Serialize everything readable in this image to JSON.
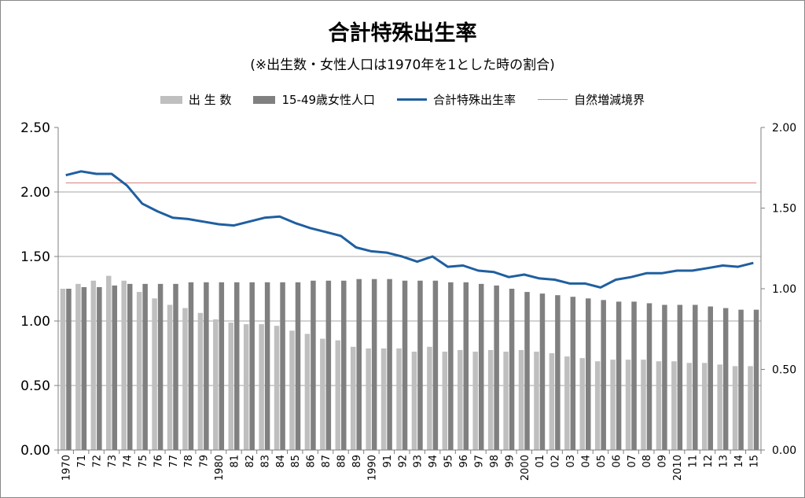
{
  "title": "合計特殊出生率",
  "subtitle": "(※出生数・女性人口は1970年を1とした時の割合)",
  "legend": [
    {
      "label": "出 生 数",
      "kind": "box",
      "color": "#bfbfbf"
    },
    {
      "label": "15-49歳女性人口",
      "kind": "box",
      "color": "#808080"
    },
    {
      "label": "合計特殊出生率",
      "kind": "line",
      "color": "#1f5fa0"
    },
    {
      "label": "自然増減境界",
      "kind": "thin",
      "color": "#d98080"
    }
  ],
  "chart_data": {
    "type": "bar",
    "categories": [
      "1970",
      "71",
      "72",
      "73",
      "74",
      "75",
      "76",
      "77",
      "78",
      "79",
      "1980",
      "81",
      "82",
      "83",
      "84",
      "85",
      "86",
      "87",
      "88",
      "89",
      "1990",
      "91",
      "92",
      "93",
      "94",
      "95",
      "96",
      "97",
      "98",
      "99",
      "2000",
      "01",
      "02",
      "03",
      "04",
      "05",
      "06",
      "07",
      "08",
      "09",
      "2010",
      "11",
      "12",
      "13",
      "14",
      "15"
    ],
    "y_left": {
      "min": 0,
      "max": 2.5,
      "ticks": [
        "0.00",
        "0.50",
        "1.00",
        "1.50",
        "2.00",
        "2.50"
      ]
    },
    "y_right": {
      "min": 0,
      "max": 2.0,
      "ticks": [
        "0.00",
        "0.50",
        "1.00",
        "1.50",
        "2.00"
      ]
    },
    "grid": true,
    "legend_position": "top",
    "series": [
      {
        "name": "出 生 数",
        "type": "bar",
        "axis": "right",
        "color": "#bfbfbf",
        "values": [
          1.0,
          1.03,
          1.05,
          1.08,
          1.05,
          0.98,
          0.94,
          0.9,
          0.88,
          0.85,
          0.81,
          0.79,
          0.78,
          0.78,
          0.77,
          0.74,
          0.72,
          0.69,
          0.68,
          0.64,
          0.63,
          0.63,
          0.63,
          0.61,
          0.64,
          0.61,
          0.62,
          0.61,
          0.62,
          0.61,
          0.62,
          0.61,
          0.6,
          0.58,
          0.57,
          0.55,
          0.56,
          0.56,
          0.56,
          0.55,
          0.55,
          0.54,
          0.54,
          0.53,
          0.52,
          0.52
        ]
      },
      {
        "name": "15-49歳女性人口",
        "type": "bar",
        "axis": "right",
        "color": "#808080",
        "values": [
          1.0,
          1.01,
          1.01,
          1.02,
          1.03,
          1.03,
          1.03,
          1.03,
          1.04,
          1.04,
          1.04,
          1.04,
          1.04,
          1.04,
          1.04,
          1.04,
          1.05,
          1.05,
          1.05,
          1.06,
          1.06,
          1.06,
          1.05,
          1.05,
          1.05,
          1.04,
          1.04,
          1.03,
          1.02,
          1.0,
          0.98,
          0.97,
          0.96,
          0.95,
          0.94,
          0.93,
          0.92,
          0.92,
          0.91,
          0.9,
          0.9,
          0.9,
          0.89,
          0.88,
          0.87,
          0.87
        ]
      },
      {
        "name": "合計特殊出生率",
        "type": "line",
        "axis": "right",
        "color": "#1f5fa0",
        "values": [
          2.13,
          2.16,
          2.14,
          2.14,
          2.05,
          1.91,
          1.85,
          1.8,
          1.79,
          1.77,
          1.75,
          1.74,
          1.77,
          1.8,
          1.81,
          1.76,
          1.72,
          1.69,
          1.66,
          1.57,
          1.54,
          1.53,
          1.5,
          1.46,
          1.5,
          1.42,
          1.43,
          1.39,
          1.38,
          1.34,
          1.36,
          1.33,
          1.32,
          1.29,
          1.29,
          1.26,
          1.32,
          1.34,
          1.37,
          1.37,
          1.39,
          1.39,
          1.41,
          1.43,
          1.42,
          1.45
        ]
      },
      {
        "name": "自然増減境界",
        "type": "hline",
        "axis": "left",
        "color": "#d98080",
        "value": 2.07
      }
    ]
  }
}
